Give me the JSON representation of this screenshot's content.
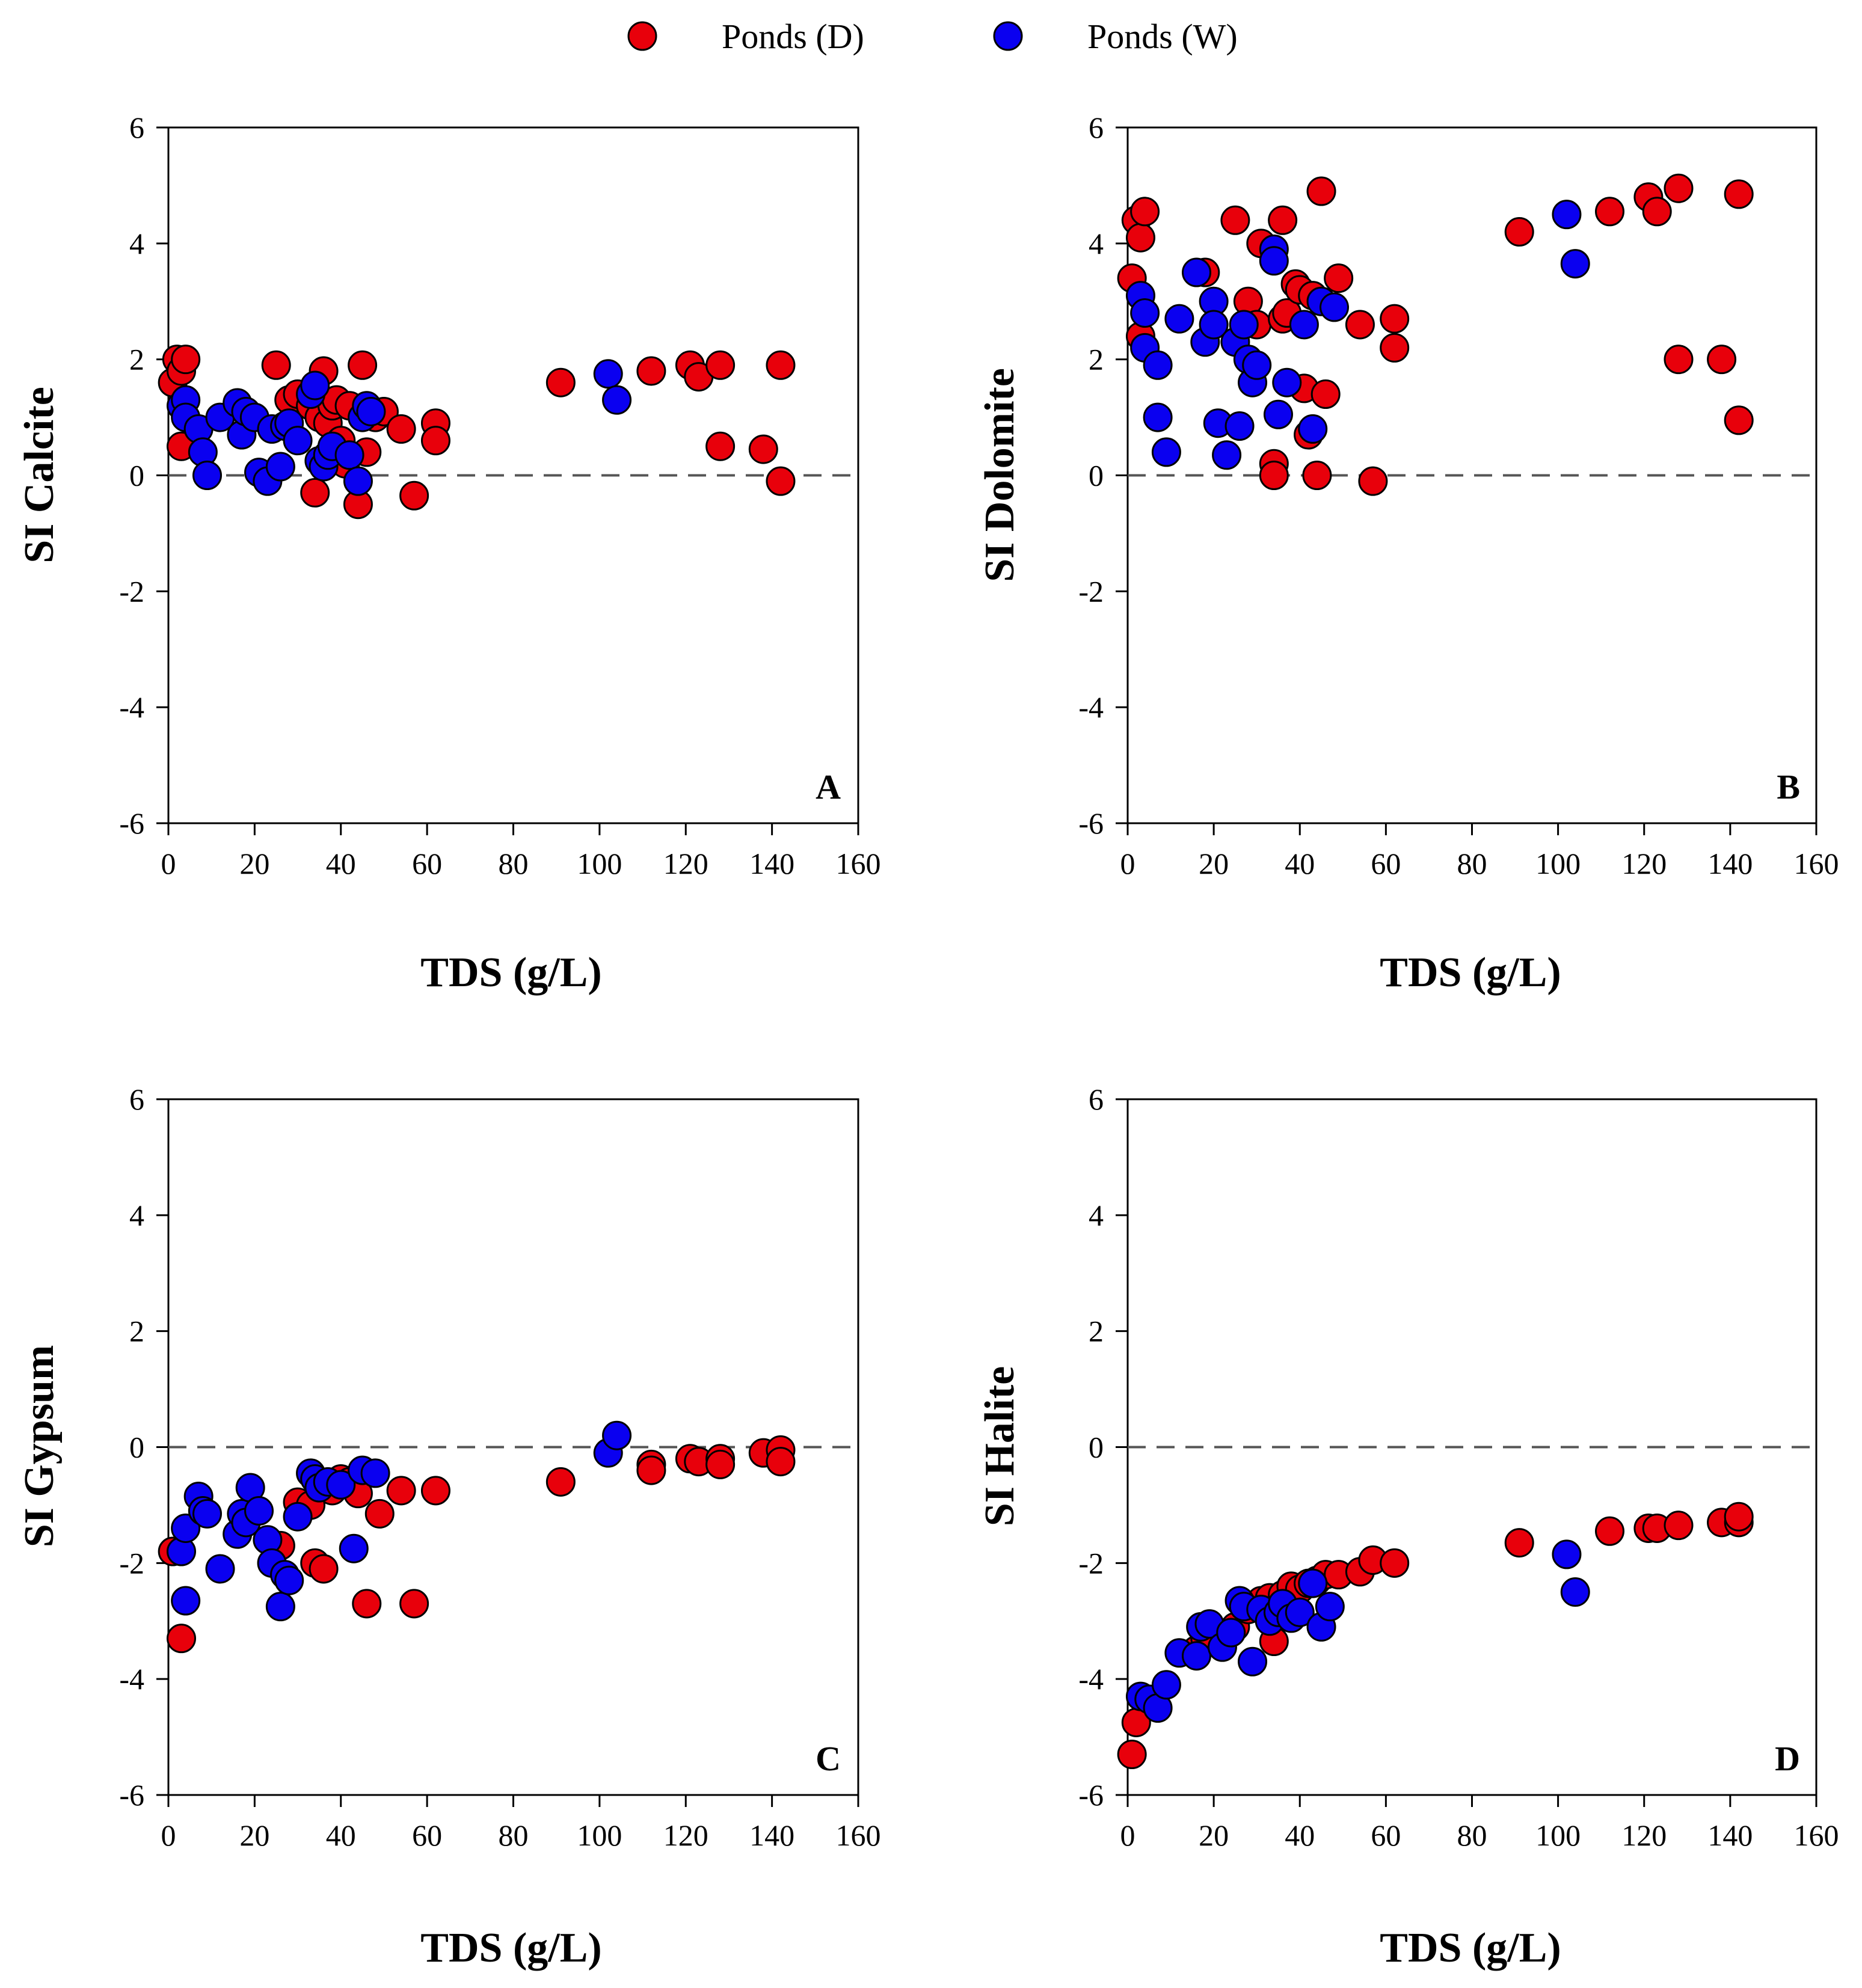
{
  "legend": [
    {
      "label": "Ponds (D)",
      "color": "#e8000b"
    },
    {
      "label": "Ponds (W)",
      "color": "#0a00f0"
    }
  ],
  "chart_data": [
    {
      "type": "scatter",
      "panel": "A",
      "xlabel": "TDS (g/L)",
      "ylabel": "SI Calcite",
      "xlim": [
        0,
        160
      ],
      "ylim": [
        -6,
        6
      ],
      "xticks": [
        0,
        20,
        40,
        60,
        80,
        100,
        120,
        140,
        160
      ],
      "yticks": [
        -6,
        -4,
        -2,
        0,
        2,
        4,
        6
      ],
      "reference_line": 0,
      "series": [
        {
          "name": "Ponds (D)",
          "points": [
            [
              1,
              1.6
            ],
            [
              2,
              2.0
            ],
            [
              3,
              1.8
            ],
            [
              4,
              2.0
            ],
            [
              3,
              0.5
            ],
            [
              25,
              1.9
            ],
            [
              28,
              1.3
            ],
            [
              30,
              1.4
            ],
            [
              33,
              1.2
            ],
            [
              34,
              -0.3
            ],
            [
              35,
              1.0
            ],
            [
              36,
              1.8
            ],
            [
              37,
              0.9
            ],
            [
              38,
              1.2
            ],
            [
              39,
              1.3
            ],
            [
              40,
              0.6
            ],
            [
              41,
              0.2
            ],
            [
              42,
              1.2
            ],
            [
              44,
              -0.5
            ],
            [
              45,
              1.9
            ],
            [
              46,
              0.4
            ],
            [
              48,
              1.0
            ],
            [
              50,
              1.1
            ],
            [
              54,
              0.8
            ],
            [
              57,
              -0.35
            ],
            [
              62,
              0.9
            ],
            [
              62,
              0.6
            ],
            [
              91,
              1.6
            ],
            [
              112,
              1.8
            ],
            [
              121,
              1.9
            ],
            [
              123,
              1.7
            ],
            [
              128,
              1.9
            ],
            [
              128,
              0.5
            ],
            [
              138,
              0.45
            ],
            [
              142,
              1.9
            ],
            [
              142,
              -0.1
            ]
          ]
        },
        {
          "name": "Ponds (W)",
          "points": [
            [
              3,
              1.2
            ],
            [
              4,
              1.3
            ],
            [
              4,
              1.0
            ],
            [
              7,
              0.8
            ],
            [
              8,
              0.4
            ],
            [
              9,
              0.0
            ],
            [
              12,
              1.0
            ],
            [
              16,
              1.25
            ],
            [
              17,
              0.7
            ],
            [
              18,
              1.1
            ],
            [
              20,
              1.0
            ],
            [
              21,
              0.05
            ],
            [
              23,
              -0.1
            ],
            [
              24,
              0.8
            ],
            [
              26,
              0.15
            ],
            [
              27,
              0.85
            ],
            [
              28,
              0.9
            ],
            [
              30,
              0.6
            ],
            [
              33,
              1.4
            ],
            [
              34,
              1.55
            ],
            [
              35,
              0.25
            ],
            [
              36,
              0.15
            ],
            [
              37,
              0.35
            ],
            [
              38,
              0.5
            ],
            [
              42,
              0.35
            ],
            [
              44,
              -0.1
            ],
            [
              45,
              1.0
            ],
            [
              46,
              1.2
            ],
            [
              47,
              1.1
            ],
            [
              102,
              1.75
            ],
            [
              104,
              1.3
            ]
          ]
        }
      ]
    },
    {
      "type": "scatter",
      "panel": "B",
      "xlabel": "TDS (g/L)",
      "ylabel": "SI Dolomite",
      "xlim": [
        0,
        160
      ],
      "ylim": [
        -6,
        6
      ],
      "xticks": [
        0,
        20,
        40,
        60,
        80,
        100,
        120,
        140,
        160
      ],
      "yticks": [
        -6,
        -4,
        -2,
        0,
        2,
        4,
        6
      ],
      "reference_line": 0,
      "series": [
        {
          "name": "Ponds (D)",
          "points": [
            [
              1,
              3.4
            ],
            [
              2,
              4.4
            ],
            [
              3,
              4.1
            ],
            [
              4,
              4.55
            ],
            [
              3,
              2.4
            ],
            [
              18,
              3.5
            ],
            [
              25,
              4.4
            ],
            [
              28,
              3.0
            ],
            [
              30,
              2.6
            ],
            [
              31,
              4.0
            ],
            [
              34,
              0.2
            ],
            [
              34,
              0.0
            ],
            [
              36,
              4.4
            ],
            [
              36,
              2.7
            ],
            [
              37,
              2.8
            ],
            [
              39,
              3.3
            ],
            [
              40,
              3.2
            ],
            [
              41,
              1.5
            ],
            [
              42,
              0.7
            ],
            [
              43,
              3.1
            ],
            [
              44,
              0.0
            ],
            [
              45,
              4.9
            ],
            [
              46,
              1.4
            ],
            [
              49,
              3.4
            ],
            [
              54,
              2.6
            ],
            [
              57,
              -0.1
            ],
            [
              62,
              2.7
            ],
            [
              62,
              2.2
            ],
            [
              91,
              4.2
            ],
            [
              112,
              4.55
            ],
            [
              121,
              4.8
            ],
            [
              123,
              4.55
            ],
            [
              128,
              4.95
            ],
            [
              128,
              2.0
            ],
            [
              138,
              2.0
            ],
            [
              142,
              4.85
            ],
            [
              142,
              0.95
            ]
          ]
        },
        {
          "name": "Ponds (W)",
          "points": [
            [
              3,
              3.1
            ],
            [
              4,
              2.8
            ],
            [
              4,
              2.2
            ],
            [
              7,
              1.9
            ],
            [
              7,
              1.0
            ],
            [
              9,
              0.4
            ],
            [
              12,
              2.7
            ],
            [
              16,
              3.5
            ],
            [
              18,
              2.3
            ],
            [
              20,
              3.0
            ],
            [
              20,
              2.6
            ],
            [
              21,
              0.9
            ],
            [
              23,
              0.35
            ],
            [
              25,
              2.3
            ],
            [
              26,
              0.85
            ],
            [
              27,
              2.6
            ],
            [
              28,
              2.0
            ],
            [
              29,
              1.6
            ],
            [
              30,
              1.9
            ],
            [
              34,
              3.9
            ],
            [
              34,
              3.7
            ],
            [
              35,
              1.05
            ],
            [
              37,
              1.6
            ],
            [
              41,
              2.6
            ],
            [
              43,
              0.8
            ],
            [
              45,
              3.0
            ],
            [
              48,
              2.9
            ],
            [
              102,
              4.5
            ],
            [
              104,
              3.65
            ]
          ]
        }
      ]
    },
    {
      "type": "scatter",
      "panel": "C",
      "xlabel": "TDS (g/L)",
      "ylabel": "SI Gypsum",
      "xlim": [
        0,
        160
      ],
      "ylim": [
        -6,
        6
      ],
      "xticks": [
        0,
        20,
        40,
        60,
        80,
        100,
        120,
        140,
        160
      ],
      "yticks": [
        -6,
        -4,
        -2,
        0,
        2,
        4,
        6
      ],
      "reference_line": 0,
      "series": [
        {
          "name": "Ponds (D)",
          "points": [
            [
              1,
              -1.8
            ],
            [
              3,
              -3.3
            ],
            [
              26,
              -1.7
            ],
            [
              30,
              -0.95
            ],
            [
              33,
              -1.0
            ],
            [
              34,
              -2.0
            ],
            [
              36,
              -2.1
            ],
            [
              38,
              -0.75
            ],
            [
              40,
              -0.55
            ],
            [
              42,
              -0.6
            ],
            [
              44,
              -0.8
            ],
            [
              46,
              -2.7
            ],
            [
              49,
              -1.15
            ],
            [
              54,
              -0.75
            ],
            [
              57,
              -2.7
            ],
            [
              62,
              -0.75
            ],
            [
              91,
              -0.6
            ],
            [
              112,
              -0.3
            ],
            [
              112,
              -0.4
            ],
            [
              121,
              -0.2
            ],
            [
              123,
              -0.25
            ],
            [
              128,
              -0.2
            ],
            [
              128,
              -0.3
            ],
            [
              138,
              -0.1
            ],
            [
              142,
              -0.05
            ],
            [
              142,
              -0.25
            ]
          ]
        },
        {
          "name": "Ponds (W)",
          "points": [
            [
              3,
              -1.8
            ],
            [
              4,
              -2.65
            ],
            [
              4,
              -1.4
            ],
            [
              7,
              -0.85
            ],
            [
              8,
              -1.1
            ],
            [
              9,
              -1.15
            ],
            [
              12,
              -2.1
            ],
            [
              16,
              -1.5
            ],
            [
              17,
              -1.15
            ],
            [
              18,
              -1.3
            ],
            [
              19,
              -0.7
            ],
            [
              21,
              -1.1
            ],
            [
              23,
              -1.6
            ],
            [
              24,
              -2.0
            ],
            [
              26,
              -2.75
            ],
            [
              27,
              -2.2
            ],
            [
              28,
              -2.3
            ],
            [
              30,
              -1.2
            ],
            [
              33,
              -0.45
            ],
            [
              34,
              -0.55
            ],
            [
              35,
              -0.7
            ],
            [
              37,
              -0.6
            ],
            [
              40,
              -0.65
            ],
            [
              43,
              -1.75
            ],
            [
              45,
              -0.4
            ],
            [
              48,
              -0.45
            ],
            [
              102,
              -0.1
            ],
            [
              104,
              0.2
            ]
          ]
        }
      ]
    },
    {
      "type": "scatter",
      "panel": "D",
      "xlabel": "TDS (g/L)",
      "ylabel": "SI Halite",
      "xlim": [
        0,
        160
      ],
      "ylim": [
        -6,
        6
      ],
      "xticks": [
        0,
        20,
        40,
        60,
        80,
        100,
        120,
        140,
        160
      ],
      "yticks": [
        -6,
        -4,
        -2,
        0,
        2,
        4,
        6
      ],
      "reference_line": 0,
      "series": [
        {
          "name": "Ponds (D)",
          "points": [
            [
              1,
              -5.3
            ],
            [
              2,
              -4.75
            ],
            [
              16,
              -3.5
            ],
            [
              18,
              -3.3
            ],
            [
              25,
              -3.1
            ],
            [
              28,
              -2.8
            ],
            [
              31,
              -2.65
            ],
            [
              33,
              -2.6
            ],
            [
              34,
              -3.35
            ],
            [
              36,
              -2.55
            ],
            [
              38,
              -2.4
            ],
            [
              40,
              -2.45
            ],
            [
              42,
              -2.35
            ],
            [
              44,
              -2.3
            ],
            [
              46,
              -2.2
            ],
            [
              49,
              -2.2
            ],
            [
              54,
              -2.15
            ],
            [
              57,
              -1.95
            ],
            [
              62,
              -2.0
            ],
            [
              91,
              -1.65
            ],
            [
              112,
              -1.45
            ],
            [
              121,
              -1.4
            ],
            [
              123,
              -1.4
            ],
            [
              128,
              -1.35
            ],
            [
              138,
              -1.3
            ],
            [
              142,
              -1.3
            ],
            [
              142,
              -1.2
            ]
          ]
        },
        {
          "name": "Ponds (W)",
          "points": [
            [
              3,
              -4.3
            ],
            [
              5,
              -4.35
            ],
            [
              7,
              -4.5
            ],
            [
              9,
              -4.1
            ],
            [
              12,
              -3.55
            ],
            [
              16,
              -3.6
            ],
            [
              17,
              -3.1
            ],
            [
              19,
              -3.05
            ],
            [
              22,
              -3.45
            ],
            [
              24,
              -3.2
            ],
            [
              26,
              -2.65
            ],
            [
              27,
              -2.75
            ],
            [
              29,
              -3.7
            ],
            [
              31,
              -2.8
            ],
            [
              33,
              -3.0
            ],
            [
              35,
              -2.85
            ],
            [
              36,
              -2.7
            ],
            [
              38,
              -2.95
            ],
            [
              40,
              -2.85
            ],
            [
              43,
              -2.35
            ],
            [
              45,
              -3.1
            ],
            [
              47,
              -2.75
            ],
            [
              102,
              -1.85
            ],
            [
              104,
              -2.5
            ]
          ]
        }
      ]
    }
  ]
}
